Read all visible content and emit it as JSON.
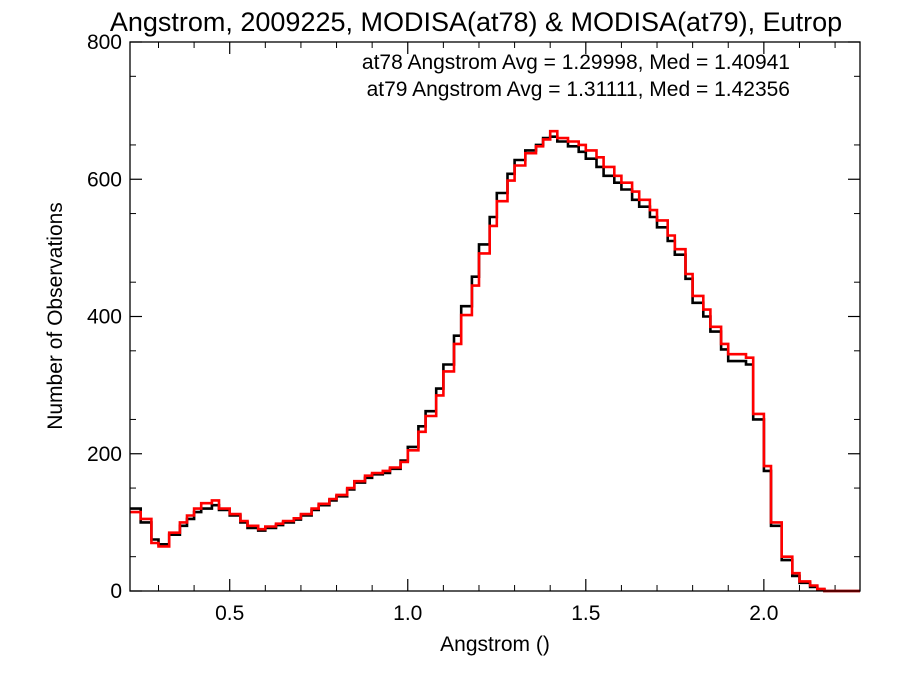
{
  "chart_data": {
    "type": "line",
    "title": "Angstrom, 2009225, MODISA(at78) & MODISA(at79), Eutrop",
    "xlabel": "Angstrom ()",
    "ylabel": "Number of Observations",
    "xlim": [
      0.22,
      2.27
    ],
    "ylim": [
      0,
      800
    ],
    "x_ticks": [
      {
        "value": 0.5,
        "label": "0.5"
      },
      {
        "value": 1.0,
        "label": "1.0"
      },
      {
        "value": 1.5,
        "label": "1.5"
      },
      {
        "value": 2.0,
        "label": "2.0"
      }
    ],
    "y_ticks": [
      {
        "value": 0,
        "label": "0"
      },
      {
        "value": 200,
        "label": "200"
      },
      {
        "value": 400,
        "label": "400"
      },
      {
        "value": 600,
        "label": "600"
      },
      {
        "value": 800,
        "label": "800"
      }
    ],
    "grid": false,
    "legend_position": "top-right",
    "annotations": [
      {
        "text": "at78 Angstrom Avg = 1.29998, Med = 1.40941",
        "color": "#000000"
      },
      {
        "text": "at79 Angstrom Avg = 1.31111, Med = 1.42356",
        "color": "#ff0000"
      }
    ],
    "series": [
      {
        "color": "#000000",
        "step": true,
        "x": [
          0.22,
          0.25,
          0.28,
          0.3,
          0.33,
          0.36,
          0.38,
          0.4,
          0.42,
          0.45,
          0.47,
          0.5,
          0.53,
          0.55,
          0.58,
          0.6,
          0.63,
          0.65,
          0.68,
          0.7,
          0.73,
          0.75,
          0.78,
          0.8,
          0.83,
          0.85,
          0.88,
          0.9,
          0.93,
          0.95,
          0.98,
          1.0,
          1.03,
          1.05,
          1.08,
          1.1,
          1.13,
          1.15,
          1.18,
          1.2,
          1.23,
          1.25,
          1.28,
          1.3,
          1.33,
          1.36,
          1.38,
          1.4,
          1.42,
          1.45,
          1.48,
          1.5,
          1.53,
          1.55,
          1.58,
          1.6,
          1.63,
          1.65,
          1.68,
          1.7,
          1.73,
          1.75,
          1.78,
          1.8,
          1.83,
          1.85,
          1.88,
          1.9,
          1.93,
          1.95,
          1.97,
          2.0,
          2.02,
          2.05,
          2.08,
          2.1,
          2.13,
          2.15,
          2.17,
          2.2,
          2.22,
          2.25
        ],
        "y": [
          120,
          100,
          75,
          68,
          82,
          95,
          105,
          115,
          120,
          125,
          118,
          110,
          100,
          92,
          88,
          92,
          96,
          100,
          104,
          110,
          118,
          125,
          132,
          138,
          148,
          158,
          165,
          170,
          172,
          178,
          190,
          210,
          240,
          262,
          295,
          330,
          372,
          415,
          458,
          505,
          545,
          580,
          608,
          628,
          642,
          650,
          660,
          662,
          655,
          648,
          640,
          630,
          618,
          605,
          595,
          585,
          570,
          560,
          545,
          530,
          510,
          490,
          455,
          420,
          400,
          378,
          352,
          335,
          335,
          330,
          250,
          175,
          95,
          45,
          22,
          12,
          6,
          2,
          0,
          0,
          0,
          0
        ]
      },
      {
        "color": "#ff0000",
        "step": true,
        "x": [
          0.22,
          0.25,
          0.28,
          0.3,
          0.33,
          0.36,
          0.38,
          0.4,
          0.42,
          0.45,
          0.47,
          0.5,
          0.53,
          0.55,
          0.58,
          0.6,
          0.63,
          0.65,
          0.68,
          0.7,
          0.73,
          0.75,
          0.78,
          0.8,
          0.83,
          0.85,
          0.88,
          0.9,
          0.93,
          0.95,
          0.98,
          1.0,
          1.03,
          1.05,
          1.08,
          1.1,
          1.13,
          1.15,
          1.18,
          1.2,
          1.23,
          1.25,
          1.28,
          1.3,
          1.33,
          1.36,
          1.38,
          1.4,
          1.42,
          1.45,
          1.48,
          1.5,
          1.53,
          1.55,
          1.58,
          1.6,
          1.63,
          1.65,
          1.68,
          1.7,
          1.73,
          1.75,
          1.78,
          1.8,
          1.83,
          1.85,
          1.88,
          1.9,
          1.93,
          1.95,
          1.97,
          2.0,
          2.02,
          2.05,
          2.08,
          2.1,
          2.13,
          2.15,
          2.17,
          2.2,
          2.22,
          2.25
        ],
        "y": [
          115,
          105,
          70,
          65,
          85,
          100,
          110,
          120,
          128,
          132,
          120,
          112,
          102,
          95,
          90,
          94,
          98,
          102,
          106,
          112,
          120,
          127,
          134,
          140,
          150,
          160,
          168,
          172,
          175,
          180,
          188,
          205,
          232,
          255,
          285,
          320,
          360,
          402,
          445,
          492,
          532,
          568,
          598,
          620,
          638,
          648,
          658,
          670,
          660,
          655,
          650,
          642,
          632,
          618,
          605,
          595,
          582,
          570,
          555,
          540,
          518,
          498,
          462,
          430,
          410,
          385,
          360,
          345,
          345,
          340,
          258,
          182,
          100,
          50,
          26,
          14,
          8,
          3,
          0,
          0,
          0,
          0
        ]
      }
    ]
  }
}
